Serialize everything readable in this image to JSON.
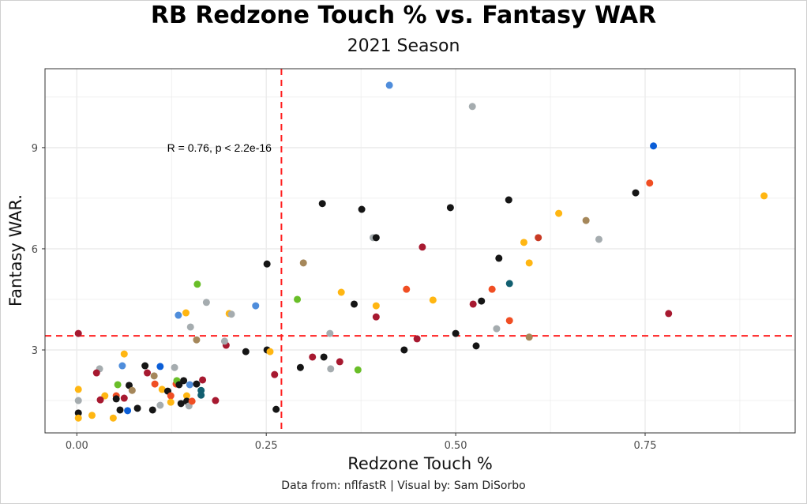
{
  "chart_data": {
    "type": "scatter",
    "title": "RB Redzone Touch % vs. Fantasy WAR",
    "subtitle": "2021 Season",
    "xlabel": "Redzone Touch %",
    "ylabel": "Fantasy WAR.",
    "caption": "Data from: nflfastR | Visual by: Sam DiSorbo",
    "annotation": "R = 0.76, p < 2.2e-16",
    "annotation_pos": [
      0.19,
      9.0
    ],
    "xlim": [
      -0.042,
      0.948
    ],
    "ylim": [
      0.54,
      11.34
    ],
    "xticks": [
      0,
      0.25,
      0.5,
      0.75
    ],
    "xtick_labels": [
      "0.00",
      "0.25",
      "0.50",
      "0.75"
    ],
    "yticks": [
      3,
      6,
      9
    ],
    "ytick_labels": [
      "3",
      "6",
      "9"
    ],
    "grid": true,
    "legend": "none",
    "reference_lines": {
      "vertical_x": 0.27,
      "horizontal_y": 3.42,
      "color": "#ff2020"
    },
    "palette": {
      "black": "#151515",
      "gray": "#a5acaf",
      "crimson": "#a71930",
      "gold": "#ffb612",
      "blue": "#4f8ddb",
      "navy": "#0b5ed7",
      "redorange": "#f04e23",
      "green": "#69be28",
      "tan": "#a5875a",
      "teal": "#125f70",
      "rust": "#c83a24"
    },
    "points": [
      [
        0.4125,
        10.85,
        "blue"
      ],
      [
        0.522,
        10.22,
        "gray"
      ],
      [
        0.761,
        9.05,
        "navy"
      ],
      [
        0.756,
        7.95,
        "redorange"
      ],
      [
        0.7375,
        7.66,
        "black"
      ],
      [
        0.907,
        7.57,
        "gold"
      ],
      [
        0.57,
        7.45,
        "black"
      ],
      [
        0.324,
        7.34,
        "black"
      ],
      [
        0.376,
        7.17,
        "black"
      ],
      [
        0.493,
        7.22,
        "black"
      ],
      [
        0.636,
        7.05,
        "gold"
      ],
      [
        0.672,
        6.84,
        "tan"
      ],
      [
        0.609,
        6.33,
        "rust"
      ],
      [
        0.59,
        6.19,
        "gold"
      ],
      [
        0.689,
        6.28,
        "gray"
      ],
      [
        0.391,
        6.33,
        "gray"
      ],
      [
        0.395,
        6.33,
        "black"
      ],
      [
        0.456,
        6.05,
        "crimson"
      ],
      [
        0.251,
        5.55,
        "black"
      ],
      [
        0.299,
        5.58,
        "tan"
      ],
      [
        0.571,
        4.97,
        "teal"
      ],
      [
        0.597,
        5.58,
        "gold"
      ],
      [
        0.557,
        5.72,
        "black"
      ],
      [
        0.159,
        4.95,
        "green"
      ],
      [
        0.236,
        4.31,
        "blue"
      ],
      [
        0.171,
        4.41,
        "gray"
      ],
      [
        0.291,
        4.5,
        "green"
      ],
      [
        0.349,
        4.71,
        "gold"
      ],
      [
        0.366,
        4.36,
        "black"
      ],
      [
        0.395,
        4.31,
        "gold"
      ],
      [
        0.435,
        4.8,
        "redorange"
      ],
      [
        0.47,
        4.48,
        "gold"
      ],
      [
        0.548,
        4.8,
        "redorange"
      ],
      [
        0.534,
        4.45,
        "black"
      ],
      [
        0.523,
        4.36,
        "crimson"
      ],
      [
        0.134,
        4.03,
        "blue"
      ],
      [
        0.144,
        4.1,
        "gold"
      ],
      [
        0.201,
        4.08,
        "gold"
      ],
      [
        0.204,
        4.06,
        "gray"
      ],
      [
        0.15,
        3.68,
        "gray"
      ],
      [
        0.395,
        3.98,
        "crimson"
      ],
      [
        0.571,
        3.87,
        "redorange"
      ],
      [
        0.781,
        4.08,
        "crimson"
      ],
      [
        0.334,
        3.49,
        "gray"
      ],
      [
        0.5,
        3.49,
        "black"
      ],
      [
        0.554,
        3.63,
        "gray"
      ],
      [
        0.597,
        3.38,
        "tan"
      ],
      [
        0.158,
        3.3,
        "tan"
      ],
      [
        0.002,
        3.49,
        "crimson"
      ],
      [
        0.197,
        3.14,
        "crimson"
      ],
      [
        0.195,
        3.26,
        "gray"
      ],
      [
        0.251,
        3.0,
        "black"
      ],
      [
        0.255,
        2.95,
        "gold"
      ],
      [
        0.223,
        2.95,
        "black"
      ],
      [
        0.432,
        3.0,
        "black"
      ],
      [
        0.527,
        3.12,
        "black"
      ],
      [
        0.449,
        3.33,
        "crimson"
      ],
      [
        0.261,
        2.27,
        "crimson"
      ],
      [
        0.295,
        2.48,
        "black"
      ],
      [
        0.311,
        2.79,
        "crimson"
      ],
      [
        0.326,
        2.79,
        "black"
      ],
      [
        0.347,
        2.65,
        "crimson"
      ],
      [
        0.335,
        2.44,
        "gray"
      ],
      [
        0.371,
        2.41,
        "green"
      ],
      [
        0.263,
        1.24,
        "black"
      ],
      [
        0.0625,
        2.88,
        "gold"
      ],
      [
        0.03,
        2.44,
        "gray"
      ],
      [
        0.026,
        2.32,
        "crimson"
      ],
      [
        0.06,
        2.53,
        "blue"
      ],
      [
        0.09,
        2.53,
        "black"
      ],
      [
        0.11,
        2.51,
        "navy"
      ],
      [
        0.129,
        2.48,
        "gray"
      ],
      [
        0.093,
        2.32,
        "crimson"
      ],
      [
        0.102,
        2.23,
        "tan"
      ],
      [
        0.054,
        1.97,
        "green"
      ],
      [
        0.069,
        1.95,
        "black"
      ],
      [
        0.073,
        1.8,
        "tan"
      ],
      [
        0.103,
        1.99,
        "redorange"
      ],
      [
        0.1125,
        1.83,
        "gold"
      ],
      [
        0.12,
        1.78,
        "black"
      ],
      [
        0.124,
        1.64,
        "redorange"
      ],
      [
        0.131,
        1.99,
        "redorange"
      ],
      [
        0.132,
        2.09,
        "green"
      ],
      [
        0.135,
        1.97,
        "black"
      ],
      [
        0.141,
        2.09,
        "black"
      ],
      [
        0.149,
        1.97,
        "blue"
      ],
      [
        0.158,
        1.99,
        "black"
      ],
      [
        0.166,
        2.11,
        "crimson"
      ],
      [
        0.164,
        1.8,
        "teal"
      ],
      [
        0.164,
        1.66,
        "teal"
      ],
      [
        0.002,
        1.83,
        "gold"
      ],
      [
        0.002,
        1.5,
        "gray"
      ],
      [
        0.002,
        1.13,
        "black"
      ],
      [
        0.002,
        0.98,
        "gold"
      ],
      [
        0.02,
        1.06,
        "gold"
      ],
      [
        0.037,
        1.64,
        "gold"
      ],
      [
        0.031,
        1.52,
        "crimson"
      ],
      [
        0.048,
        0.98,
        "gold"
      ],
      [
        0.052,
        1.64,
        "redorange"
      ],
      [
        0.052,
        1.55,
        "black"
      ],
      [
        0.0625,
        1.57,
        "crimson"
      ],
      [
        0.057,
        1.22,
        "black"
      ],
      [
        0.067,
        1.2,
        "navy"
      ],
      [
        0.08,
        1.27,
        "black"
      ],
      [
        0.1,
        1.22,
        "black"
      ],
      [
        0.11,
        1.36,
        "gray"
      ],
      [
        0.124,
        1.45,
        "gold"
      ],
      [
        0.1375,
        1.41,
        "black"
      ],
      [
        0.145,
        1.64,
        "gold"
      ],
      [
        0.145,
        1.48,
        "black"
      ],
      [
        0.148,
        1.34,
        "gray"
      ],
      [
        0.152,
        1.48,
        "redorange"
      ],
      [
        0.183,
        1.5,
        "crimson"
      ]
    ]
  }
}
